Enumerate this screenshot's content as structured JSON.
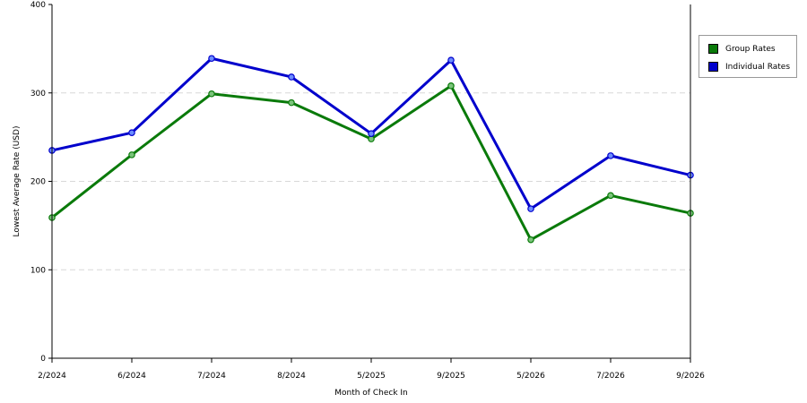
{
  "chart_data": {
    "type": "line",
    "xlabel": "Month of Check In",
    "ylabel": "Lowest Average Rate (USD)",
    "categories": [
      "2/2024",
      "6/2024",
      "7/2024",
      "8/2024",
      "5/2025",
      "9/2025",
      "5/2026",
      "7/2026",
      "9/2026"
    ],
    "ylim": [
      0,
      400
    ],
    "yticks": [
      "0",
      "100",
      "200",
      "300",
      "400"
    ],
    "grid": true,
    "legend_position": "right",
    "series": [
      {
        "name": "Group Rates",
        "color": "#0a7a0a",
        "marker_color": "#7bc47b",
        "values": [
          159,
          230,
          299,
          289,
          248,
          308,
          134,
          184,
          164
        ]
      },
      {
        "name": "Individual Rates",
        "color": "#0000cc",
        "marker_color": "#6b8cff",
        "values": [
          235,
          255,
          339,
          318,
          254,
          337,
          169,
          229,
          207
        ]
      }
    ]
  }
}
